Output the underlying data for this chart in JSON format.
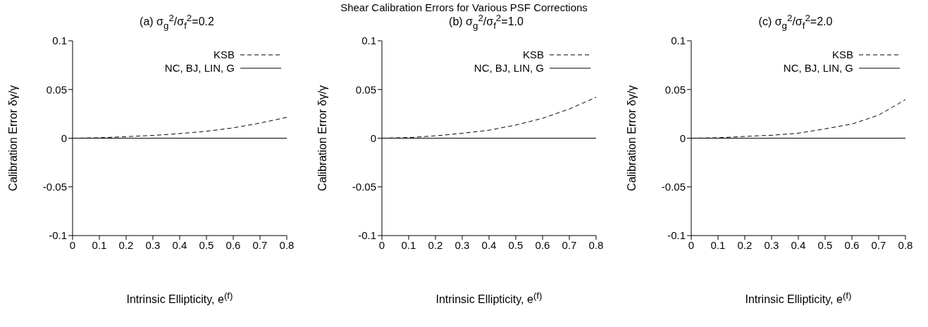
{
  "chart_data": [
    {
      "type": "line",
      "title": "(a) σ$_{g}$$^{2}$/σ$_{f}$$^{2}$=0.2",
      "annotations": [
        "Shear Calibration Errors for Various PSF Corrections"
      ],
      "xlabel": "Intrinsic Ellipticity, e$^{(f)}$",
      "ylabel": "Calibration Error δγ/γ",
      "x": [
        0,
        0.1,
        0.2,
        0.3,
        0.4,
        0.5,
        0.6,
        0.7,
        0.8
      ],
      "series": [
        {
          "name": "NC, BJ, LIN, G",
          "color": "#000000",
          "line_style": "solid",
          "values": [
            0,
            0,
            0,
            0,
            0,
            0,
            0,
            0,
            0
          ]
        },
        {
          "name": "KSB",
          "color": "#000000",
          "line_style": "dashed",
          "values": [
            0,
            0.0004,
            0.0016,
            0.0028,
            0.0047,
            0.0071,
            0.0106,
            0.0155,
            0.0214
          ]
        }
      ],
      "xlim": [
        0,
        0.8
      ],
      "xticks": [
        0,
        0.1,
        0.2,
        0.3,
        0.4,
        0.5,
        0.6,
        0.7,
        0.8
      ],
      "ylim": [
        -0.1,
        0.1
      ],
      "yticks": [
        -0.1,
        -0.05,
        0,
        0.05,
        0.1
      ],
      "legend": "top right",
      "grid": false
    },
    {
      "type": "line",
      "title": "(b) σ$_{g}$$^{2}$/σ$_{f}$$^{2}$=1.0",
      "xlabel": "Intrinsic Ellipticity, e$^{(f)}$",
      "ylabel": "Calibration Error δγ/γ",
      "x": [
        0,
        0.1,
        0.2,
        0.3,
        0.4,
        0.5,
        0.6,
        0.7,
        0.8
      ],
      "series": [
        {
          "name": "NC, BJ, LIN, G",
          "color": "#000000",
          "line_style": "solid",
          "values": [
            0,
            0,
            0,
            0,
            0,
            0,
            0,
            0,
            0
          ]
        },
        {
          "name": "KSB",
          "color": "#000000",
          "line_style": "dashed",
          "values": [
            0,
            0.0006,
            0.0024,
            0.005,
            0.0082,
            0.0135,
            0.0204,
            0.03,
            0.042
          ]
        }
      ],
      "xlim": [
        0,
        0.8
      ],
      "xticks": [
        0,
        0.1,
        0.2,
        0.3,
        0.4,
        0.5,
        0.6,
        0.7,
        0.8
      ],
      "ylim": [
        -0.1,
        0.1
      ],
      "yticks": [
        -0.1,
        -0.05,
        0,
        0.05,
        0.1
      ],
      "legend": "top right",
      "grid": false
    },
    {
      "type": "line",
      "title": "(c) σ$_{g}$$^{2}$/σ$_{f}$$^{2}$=2.0",
      "xlabel": "Intrinsic Ellipticity, e$^{(f)}$",
      "ylabel": "Calibration Error δγ/γ",
      "x": [
        0,
        0.1,
        0.2,
        0.3,
        0.4,
        0.5,
        0.6,
        0.7,
        0.8
      ],
      "series": [
        {
          "name": "NC, BJ, LIN, G",
          "color": "#000000",
          "line_style": "solid",
          "values": [
            0,
            0,
            0,
            0,
            0,
            0,
            0,
            0,
            0
          ]
        },
        {
          "name": "KSB",
          "color": "#000000",
          "line_style": "dashed",
          "values": [
            0,
            0.0004,
            0.0018,
            0.003,
            0.0051,
            0.0096,
            0.0145,
            0.0237,
            0.0396
          ]
        }
      ],
      "xlim": [
        0,
        0.8
      ],
      "xticks": [
        0,
        0.1,
        0.2,
        0.3,
        0.4,
        0.5,
        0.6,
        0.7,
        0.8
      ],
      "ylim": [
        -0.1,
        0.1
      ],
      "yticks": [
        -0.1,
        -0.05,
        0,
        0.05,
        0.1
      ],
      "legend": "top right",
      "grid": false
    }
  ]
}
